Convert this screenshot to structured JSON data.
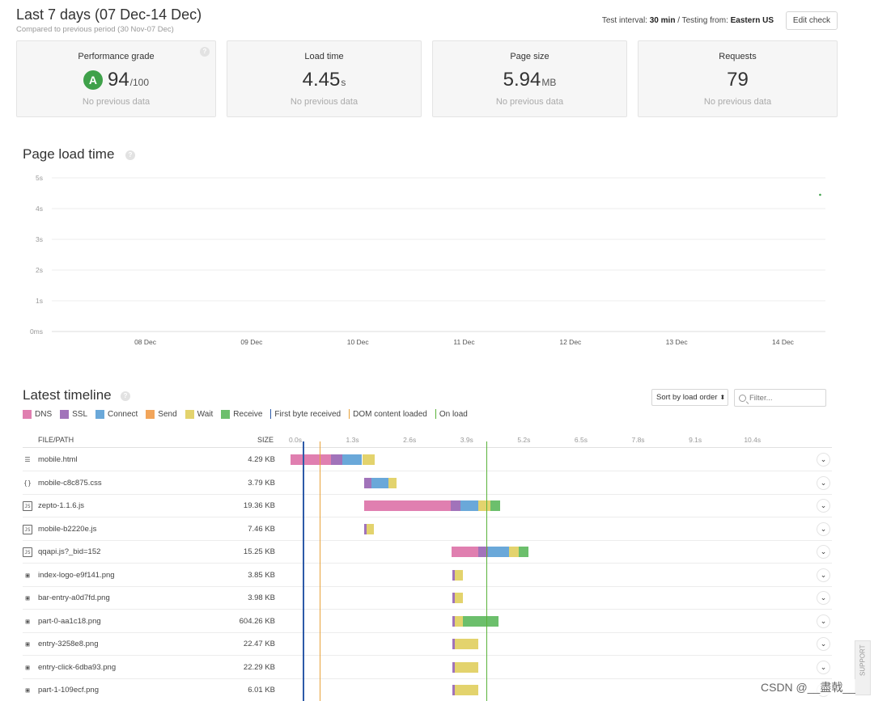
{
  "header": {
    "title": "Last 7 days (07 Dec-14 Dec)",
    "subtitle": "Compared to previous period (30 Nov-07 Dec)",
    "interval_label": "Test interval:",
    "interval_value": "30 min",
    "separator": "/",
    "location_label": "Testing from:",
    "location_value": "Eastern US",
    "edit_label": "Edit check"
  },
  "cards": [
    {
      "label": "Performance grade",
      "grade": "A",
      "value": "94",
      "unit": "/100",
      "note": "No previous data"
    },
    {
      "label": "Load time",
      "value": "4.45",
      "unit": "s",
      "note": "No previous data"
    },
    {
      "label": "Page size",
      "value": "5.94",
      "unit": "MB",
      "note": "No previous data"
    },
    {
      "label": "Requests",
      "value": "79",
      "unit": "",
      "note": "No previous data"
    }
  ],
  "page_load": {
    "title": "Page load time",
    "help_icon": "help-icon"
  },
  "chart_data": {
    "type": "line",
    "title": "Page load time",
    "y_ticks": [
      "0ms",
      "1s",
      "2s",
      "3s",
      "4s",
      "5s"
    ],
    "ylim": [
      0,
      5
    ],
    "x_ticks": [
      "08 Dec",
      "09 Dec",
      "10 Dec",
      "11 Dec",
      "12 Dec",
      "13 Dec",
      "14 Dec"
    ],
    "xlim": [
      7.12,
      14.4
    ],
    "series": [
      {
        "name": "Load time",
        "x": [
          14.35
        ],
        "values": [
          4.45
        ]
      }
    ],
    "grid": true
  },
  "timeline": {
    "title": "Latest timeline",
    "sort_label": "Sort by load order",
    "sort_icon": "updown-chevron-icon",
    "filter_icon": "magnifier-icon",
    "filter_placeholder": "Filter...",
    "legend": [
      {
        "label": "DNS",
        "color": "#e07fb0",
        "kind": "box"
      },
      {
        "label": "SSL",
        "color": "#a173ba",
        "kind": "box"
      },
      {
        "label": "Connect",
        "color": "#6aa8d9",
        "kind": "box"
      },
      {
        "label": "Send",
        "color": "#f2a55a",
        "kind": "box"
      },
      {
        "label": "Wait",
        "color": "#e3d36d",
        "kind": "box"
      },
      {
        "label": "Receive",
        "color": "#6cbf6c",
        "kind": "box"
      },
      {
        "label": "First byte received",
        "color": "#2d5aa8",
        "kind": "line"
      },
      {
        "label": "DOM content loaded",
        "color": "#e8a23a",
        "kind": "line"
      },
      {
        "label": "On load",
        "color": "#5ab33a",
        "kind": "line"
      }
    ],
    "col_file": "FILE/PATH",
    "col_size": "SIZE",
    "ticks": [
      "0.0s",
      "1.3s",
      "2.6s",
      "3.9s",
      "5.2s",
      "6.5s",
      "7.8s",
      "9.1s",
      "10.4s"
    ],
    "tick_step_s": 1.3,
    "markers_s": {
      "first_byte": 0.27,
      "dom_loaded": 0.66,
      "on_load": 4.45
    },
    "rows": [
      {
        "name": "mobile.html",
        "size": "4.29 KB",
        "icon": "document-icon",
        "icon_glyph": "☰",
        "segments": [
          {
            "phase": "DNS",
            "start": 0.0,
            "dur": 0.93
          },
          {
            "phase": "SSL",
            "start": 0.93,
            "dur": 0.24
          },
          {
            "phase": "Connect",
            "start": 1.17,
            "dur": 0.46
          },
          {
            "phase": "Wait",
            "start": 1.63,
            "dur": 0.29
          }
        ]
      },
      {
        "name": "mobile-c8c875.css",
        "size": "3.79 KB",
        "icon": "css-braces-icon",
        "icon_glyph": "{}",
        "segments": [
          {
            "phase": "SSL",
            "start": 1.68,
            "dur": 0.17
          },
          {
            "phase": "Connect",
            "start": 1.85,
            "dur": 0.37
          },
          {
            "phase": "Wait",
            "start": 2.22,
            "dur": 0.2
          }
        ]
      },
      {
        "name": "zepto-1.1.6.js",
        "size": "19.36 KB",
        "icon": "js-file-icon",
        "icon_glyph": "JS",
        "segments": [
          {
            "phase": "DNS",
            "start": 1.68,
            "dur": 1.96
          },
          {
            "phase": "SSL",
            "start": 3.64,
            "dur": 0.22
          },
          {
            "phase": "Connect",
            "start": 3.86,
            "dur": 0.42
          },
          {
            "phase": "Wait",
            "start": 4.28,
            "dur": 0.27
          },
          {
            "phase": "Receive",
            "start": 4.55,
            "dur": 0.22
          }
        ]
      },
      {
        "name": "mobile-b2220e.js",
        "size": "7.46 KB",
        "icon": "js-file-icon",
        "icon_glyph": "JS",
        "segments": [
          {
            "phase": "SSL",
            "start": 1.68,
            "dur": 0.05
          },
          {
            "phase": "Wait",
            "start": 1.73,
            "dur": 0.17
          }
        ]
      },
      {
        "name": "qqapi.js?_bid=152",
        "size": "15.25 KB",
        "icon": "js-file-icon",
        "icon_glyph": "JS",
        "segments": [
          {
            "phase": "DNS",
            "start": 3.66,
            "dur": 0.61
          },
          {
            "phase": "SSL",
            "start": 4.27,
            "dur": 0.22
          },
          {
            "phase": "Connect",
            "start": 4.49,
            "dur": 0.49
          },
          {
            "phase": "Wait",
            "start": 4.98,
            "dur": 0.22
          },
          {
            "phase": "Receive",
            "start": 5.2,
            "dur": 0.22
          }
        ]
      },
      {
        "name": "index-logo-e9f141.png",
        "size": "3.85 KB",
        "icon": "image-file-icon",
        "icon_glyph": "▣",
        "segments": [
          {
            "phase": "SSL",
            "start": 3.68,
            "dur": 0.05
          },
          {
            "phase": "Wait",
            "start": 3.73,
            "dur": 0.2
          }
        ]
      },
      {
        "name": "bar-entry-a0d7fd.png",
        "size": "3.98 KB",
        "icon": "image-file-icon",
        "icon_glyph": "▣",
        "segments": [
          {
            "phase": "SSL",
            "start": 3.68,
            "dur": 0.05
          },
          {
            "phase": "Wait",
            "start": 3.73,
            "dur": 0.2
          }
        ]
      },
      {
        "name": "part-0-aa1c18.png",
        "size": "604.26 KB",
        "icon": "image-file-icon",
        "icon_glyph": "▣",
        "segments": [
          {
            "phase": "SSL",
            "start": 3.68,
            "dur": 0.05
          },
          {
            "phase": "Wait",
            "start": 3.73,
            "dur": 0.2
          },
          {
            "phase": "Receive",
            "start": 3.93,
            "dur": 0.81
          }
        ]
      },
      {
        "name": "entry-3258e8.png",
        "size": "22.47 KB",
        "icon": "image-file-icon",
        "icon_glyph": "▣",
        "segments": [
          {
            "phase": "SSL",
            "start": 3.68,
            "dur": 0.05
          },
          {
            "phase": "Wait",
            "start": 3.73,
            "dur": 0.54
          }
        ]
      },
      {
        "name": "entry-click-6dba93.png",
        "size": "22.29 KB",
        "icon": "image-file-icon",
        "icon_glyph": "▣",
        "segments": [
          {
            "phase": "SSL",
            "start": 3.68,
            "dur": 0.05
          },
          {
            "phase": "Wait",
            "start": 3.73,
            "dur": 0.54
          }
        ]
      },
      {
        "name": "part-1-109ecf.png",
        "size": "6.01 KB",
        "icon": "image-file-icon",
        "icon_glyph": "▣",
        "segments": [
          {
            "phase": "SSL",
            "start": 3.68,
            "dur": 0.05
          },
          {
            "phase": "Wait",
            "start": 3.73,
            "dur": 0.54
          }
        ]
      }
    ],
    "expand_glyph": "⌄"
  },
  "support_label": "SUPPORT",
  "watermark": "CSDN @__盡戟__"
}
